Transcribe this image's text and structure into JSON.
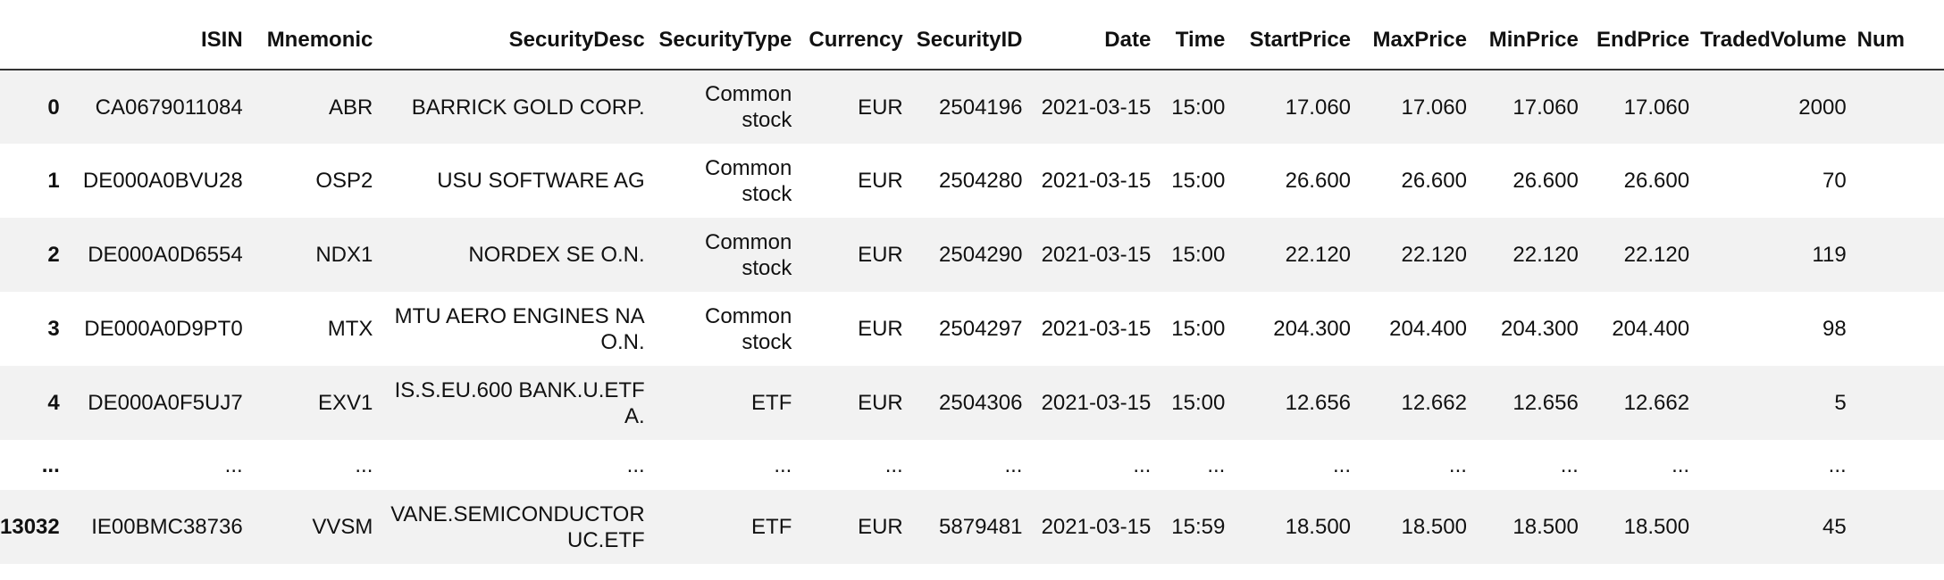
{
  "table": {
    "columns": [
      "",
      "ISIN",
      "Mnemonic",
      "SecurityDesc",
      "SecurityType",
      "Currency",
      "SecurityID",
      "Date",
      "Time",
      "StartPrice",
      "MaxPrice",
      "MinPrice",
      "EndPrice",
      "TradedVolume",
      "Num"
    ],
    "rows": [
      {
        "index": "0",
        "cells": [
          "CA0679011084",
          "ABR",
          "BARRICK GOLD CORP.",
          "Common stock",
          "EUR",
          "2504196",
          "2021-03-15",
          "15:00",
          "17.060",
          "17.060",
          "17.060",
          "17.060",
          "2000",
          ""
        ]
      },
      {
        "index": "1",
        "cells": [
          "DE000A0BVU28",
          "OSP2",
          "USU SOFTWARE AG",
          "Common stock",
          "EUR",
          "2504280",
          "2021-03-15",
          "15:00",
          "26.600",
          "26.600",
          "26.600",
          "26.600",
          "70",
          ""
        ]
      },
      {
        "index": "2",
        "cells": [
          "DE000A0D6554",
          "NDX1",
          "NORDEX SE O.N.",
          "Common stock",
          "EUR",
          "2504290",
          "2021-03-15",
          "15:00",
          "22.120",
          "22.120",
          "22.120",
          "22.120",
          "119",
          ""
        ]
      },
      {
        "index": "3",
        "cells": [
          "DE000A0D9PT0",
          "MTX",
          "MTU AERO ENGINES NA O.N.",
          "Common stock",
          "EUR",
          "2504297",
          "2021-03-15",
          "15:00",
          "204.300",
          "204.400",
          "204.300",
          "204.400",
          "98",
          ""
        ]
      },
      {
        "index": "4",
        "cells": [
          "DE000A0F5UJ7",
          "EXV1",
          "IS.S.EU.600 BANK.U.ETF A.",
          "ETF",
          "EUR",
          "2504306",
          "2021-03-15",
          "15:00",
          "12.656",
          "12.662",
          "12.656",
          "12.662",
          "5",
          ""
        ]
      },
      {
        "index": "...",
        "cells": [
          "...",
          "...",
          "...",
          "...",
          "...",
          "...",
          "...",
          "...",
          "...",
          "...",
          "...",
          "...",
          "...",
          ""
        ]
      },
      {
        "index": "13032",
        "cells": [
          "IE00BMC38736",
          "VVSM",
          "VANE.SEMICONDUCTOR UC.ETF",
          "ETF",
          "EUR",
          "5879481",
          "2021-03-15",
          "15:59",
          "18.500",
          "18.500",
          "18.500",
          "18.500",
          "45",
          ""
        ]
      }
    ]
  }
}
